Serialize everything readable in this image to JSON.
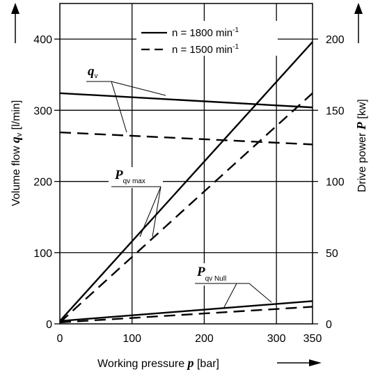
{
  "chart_data": {
    "type": "line",
    "title": "",
    "xlabel": {
      "text": "Working pressure ",
      "symbol": "p",
      "unit": " [bar]"
    },
    "ylabel_left": {
      "text": "Volume flow ",
      "symbol": "q",
      "sub": "v",
      "unit": " [l/min]"
    },
    "ylabel_right": {
      "text": "Drive power ",
      "symbol": "P",
      "unit": " [kw]"
    },
    "x_range": [
      0,
      350
    ],
    "y_left_range": [
      0,
      450
    ],
    "y_right_range": [
      0,
      225
    ],
    "x_ticks": [
      "0",
      "100",
      "200",
      "300",
      "350"
    ],
    "x_tick_values": [
      0,
      100,
      200,
      300,
      350
    ],
    "y_left_ticks": [
      "0",
      "100",
      "200",
      "300",
      "400"
    ],
    "y_left_tick_values": [
      0,
      100,
      200,
      300,
      400
    ],
    "y_right_ticks": [
      "0",
      "50",
      "100",
      "150",
      "200"
    ],
    "y_right_tick_values": [
      0,
      50,
      100,
      150,
      200
    ],
    "grid": true,
    "legend_position": "top-right",
    "legend": [
      {
        "label": "n = 1800 min",
        "sup": "-1",
        "style": "solid"
      },
      {
        "label": "n = 1500 min",
        "sup": "-1",
        "style": "dashed"
      }
    ],
    "series": [
      {
        "axis": "left",
        "style": "solid",
        "x": [
          0,
          350
        ],
        "y": [
          324,
          304
        ]
      },
      {
        "axis": "left",
        "style": "dashed",
        "x": [
          0,
          350
        ],
        "y": [
          269,
          252
        ]
      },
      {
        "axis": "right",
        "style": "solid",
        "x": [
          0,
          350
        ],
        "y": [
          2,
          198
        ]
      },
      {
        "axis": "right",
        "style": "dashed",
        "x": [
          0,
          350
        ],
        "y": [
          1,
          162
        ]
      },
      {
        "axis": "right",
        "style": "solid",
        "x": [
          0,
          350
        ],
        "y": [
          2,
          16
        ]
      },
      {
        "axis": "right",
        "style": "dashed",
        "x": [
          0,
          350
        ],
        "y": [
          1,
          12
        ]
      }
    ],
    "annotations": [
      {
        "symbol": "q",
        "sub": "v"
      },
      {
        "symbol": "P",
        "sub": "qv max"
      },
      {
        "symbol": "P",
        "sub": "qv Null"
      }
    ]
  }
}
